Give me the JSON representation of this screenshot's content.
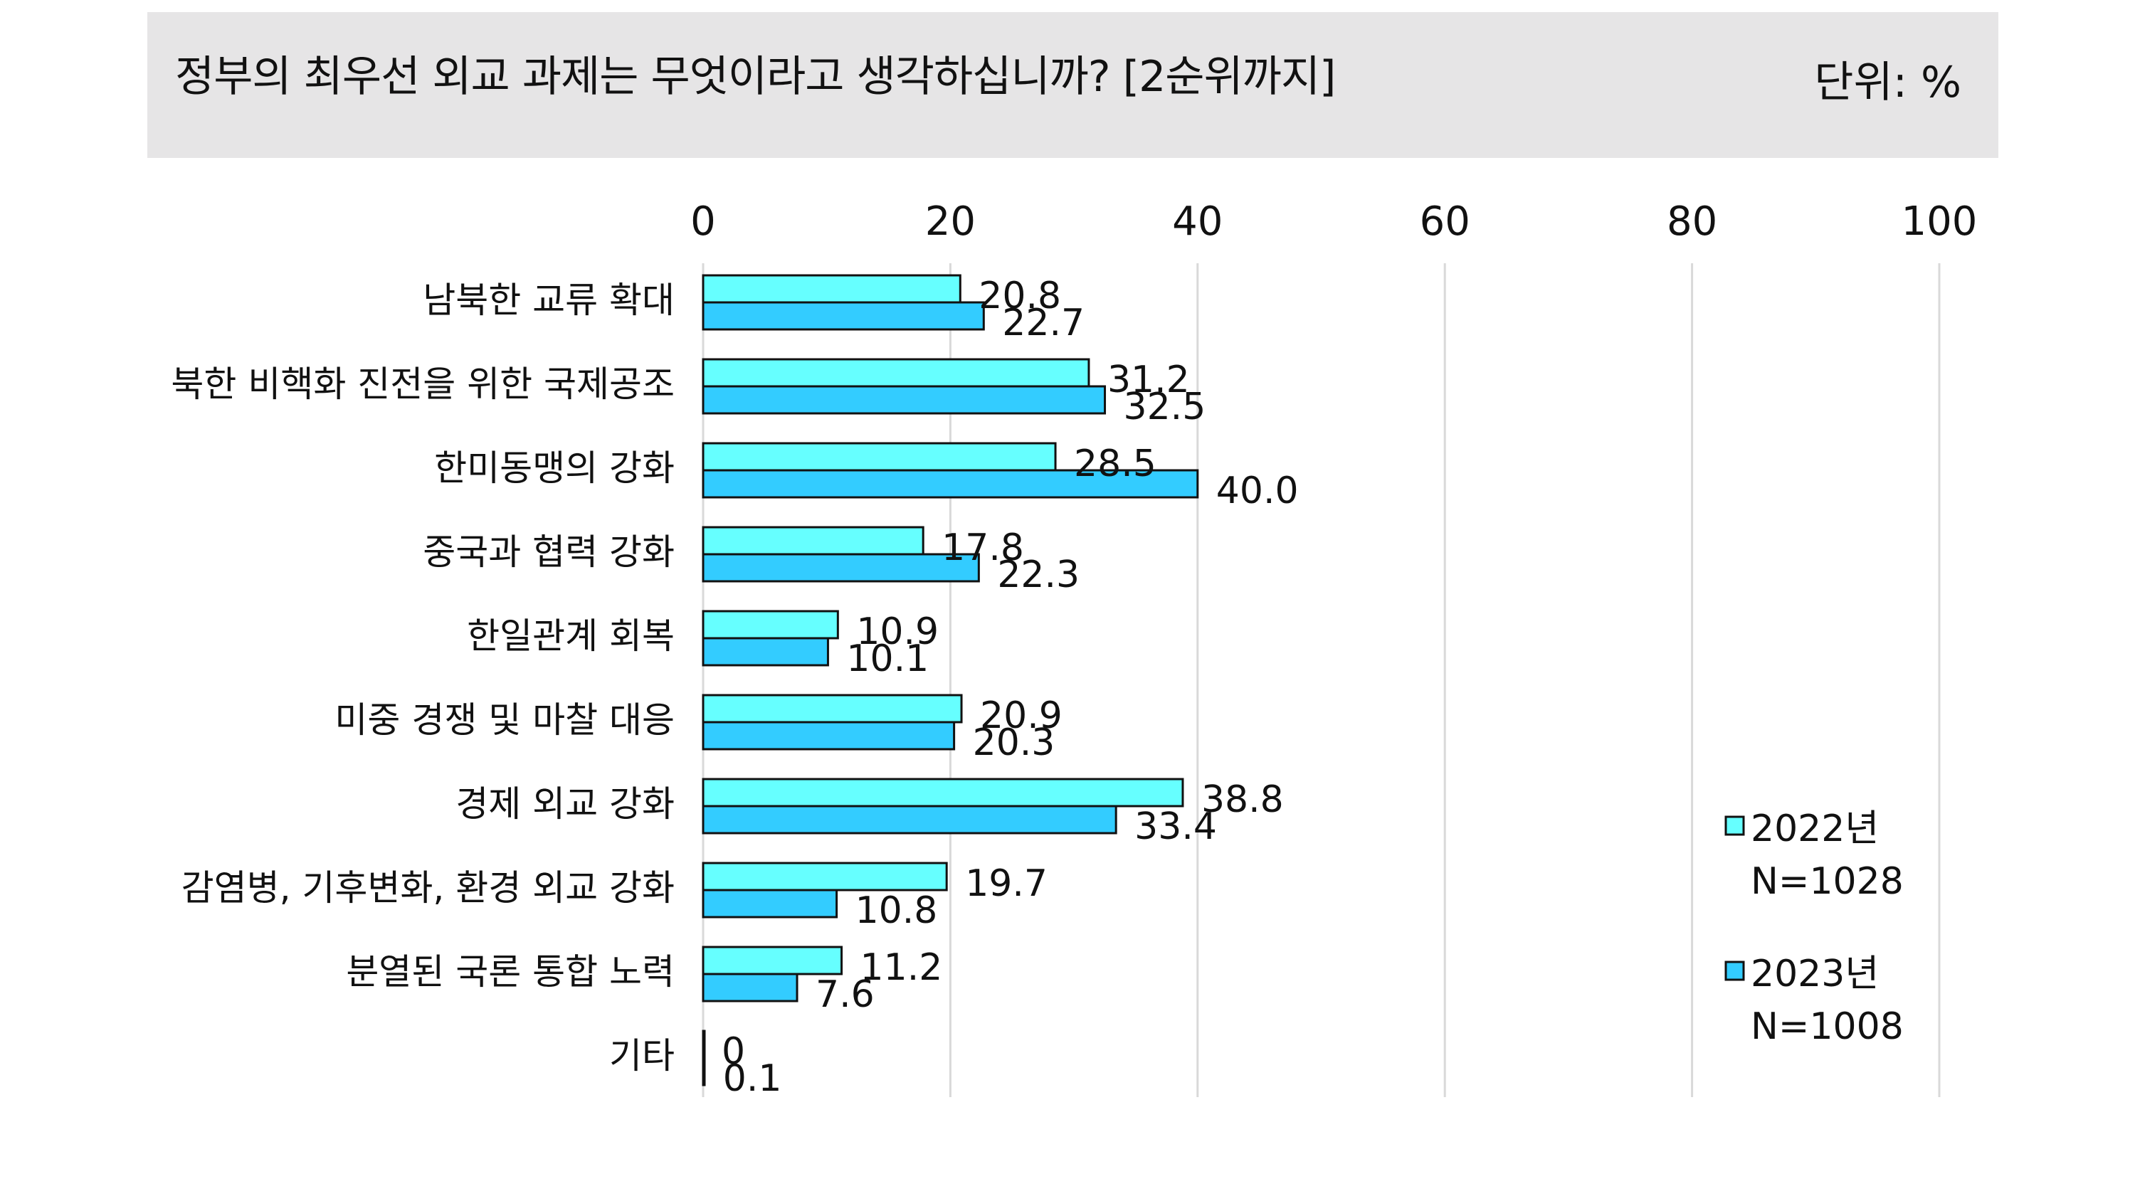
{
  "header": {
    "title": "정부의 최우선 외교 과제는 무엇이라고 생각하십니까? [2순위까지]",
    "unit": "단위: %"
  },
  "colors": {
    "series_2022": "#66ffff",
    "series_2023": "#33ccff",
    "title_background": "#e6e5e6",
    "outline": "#111111",
    "gridline": "#d9d9d9"
  },
  "chart_data": {
    "type": "bar",
    "orientation": "horizontal",
    "title": "정부의 최우선 외교 과제는 무엇이라고 생각하십니까? [2순위까지]",
    "unit": "단위: %",
    "categories": [
      "남북한 교류 확대",
      "북한 비핵화 진전을 위한 국제공조",
      "한미동맹의 강화",
      "중국과 협력 강화",
      "한일관계 회복",
      "미중 경쟁 및 마찰 대응",
      "경제 외교 강화",
      "감염병, 기후변화, 환경 외교 강화",
      "분열된 국론 통합 노력",
      "기타"
    ],
    "series": [
      {
        "name": "2022년",
        "note": "N=1028",
        "values": [
          20.8,
          31.2,
          28.5,
          17.8,
          10.9,
          20.9,
          38.8,
          19.7,
          11.2,
          0
        ],
        "labels": [
          "20.8",
          "31.2",
          "28.5",
          "17.8",
          "10.9",
          "20.9",
          "38.8",
          "19.7",
          "11.2",
          "0"
        ]
      },
      {
        "name": "2023년",
        "note": "N=1008",
        "values": [
          22.7,
          32.5,
          40.0,
          22.3,
          10.1,
          20.3,
          33.4,
          10.8,
          7.6,
          0.1
        ],
        "labels": [
          "22.7",
          "32.5",
          "40.0",
          "22.3",
          "10.1",
          "20.3",
          "33.4",
          "10.8",
          "7.6",
          "0.1"
        ]
      }
    ],
    "xlim": [
      0,
      100
    ],
    "xticks": [
      0,
      20,
      40,
      60,
      80,
      100
    ],
    "xtick_labels": [
      "0",
      "20",
      "40",
      "60",
      "80",
      "100"
    ],
    "x_axis_position": "top",
    "grid": true,
    "legend_position": "bottom-right"
  }
}
